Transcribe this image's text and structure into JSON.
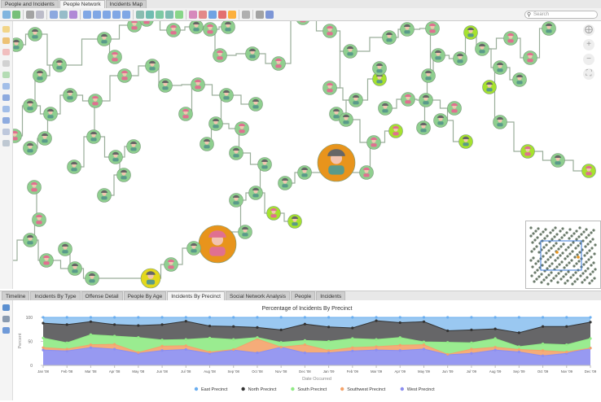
{
  "top_tabs": [
    {
      "label": "People and Incidents",
      "active": false
    },
    {
      "label": "People Network",
      "active": true
    },
    {
      "label": "Incidents Map",
      "active": false
    }
  ],
  "search": {
    "placeholder": "Search",
    "icon": "search-icon"
  },
  "bottom_tabs": [
    {
      "label": "Timeline"
    },
    {
      "label": "Incidents By Type"
    },
    {
      "label": "Offense Detail"
    },
    {
      "label": "People By Age"
    },
    {
      "label": "Incidents By Precinct",
      "active": true
    },
    {
      "label": "Social Network Analysis"
    },
    {
      "label": "People"
    },
    {
      "label": "Incidents"
    }
  ],
  "nav_controls": {
    "pan": "pan-icon",
    "zoom_in": "+",
    "zoom_out": "−",
    "fit": "fit-icon"
  },
  "node_colors": {
    "default": "#8fcf8f",
    "highlight": "#a6e22e",
    "hub": "#e8941c",
    "yellow": "#e3d81c"
  },
  "chart_data": {
    "type": "area",
    "stacked": "percent",
    "title": "Percentage of Incidents By Precinct",
    "xlabel": "Date Occurred",
    "ylabel": "Percent",
    "ylim": [
      0,
      100
    ],
    "yticks": [
      0,
      50,
      100
    ],
    "legend_position": "bottom",
    "categories": [
      "Jan '08",
      "Feb '08",
      "Mar '08",
      "Apr '08",
      "May '08",
      "Jun '08",
      "Jul '08",
      "Aug '08",
      "Sep '08",
      "Oct '08",
      "Nov '08",
      "Dec '08",
      "Jan '09",
      "Feb '09",
      "Mar '09",
      "Apr '09",
      "May '09",
      "Jun '09",
      "Jul '09",
      "Aug '09",
      "Sep '09",
      "Oct '09",
      "Nov '09",
      "Dec '09"
    ],
    "series": [
      {
        "name": "East Precinct",
        "color": "#8fc2f0",
        "values": [
          12,
          15,
          9,
          15,
          17,
          15,
          8,
          18,
          19,
          21,
          26,
          14,
          20,
          22,
          7,
          11,
          9,
          28,
          26,
          24,
          32,
          19,
          19,
          10
        ]
      },
      {
        "name": "North Precinct",
        "color": "#555558",
        "values": [
          31,
          38,
          27,
          24,
          25,
          32,
          38,
          25,
          27,
          21,
          26,
          34,
          30,
          22,
          39,
          31,
          42,
          24,
          27,
          20,
          29,
          36,
          38,
          34
        ]
      },
      {
        "name": "South Precinct",
        "color": "#8fea84",
        "values": [
          20,
          13,
          21,
          17,
          31,
          13,
          13,
          29,
          21,
          3,
          10,
          9,
          19,
          19,
          15,
          16,
          6,
          25,
          13,
          18,
          6,
          14,
          15,
          20
        ]
      },
      {
        "name": "Southwest Precinct",
        "color": "#f4a36a",
        "values": [
          5,
          4,
          6,
          10,
          2,
          9,
          8,
          3,
          1,
          29,
          0,
          17,
          5,
          7,
          7,
          11,
          9,
          1,
          9,
          6,
          5,
          11,
          3,
          0
        ]
      },
      {
        "name": "West Precinct",
        "color": "#8c8ef0",
        "values": [
          32,
          30,
          37,
          34,
          25,
          31,
          33,
          25,
          32,
          26,
          38,
          26,
          26,
          30,
          32,
          31,
          34,
          22,
          25,
          32,
          28,
          20,
          25,
          36
        ]
      }
    ]
  }
}
